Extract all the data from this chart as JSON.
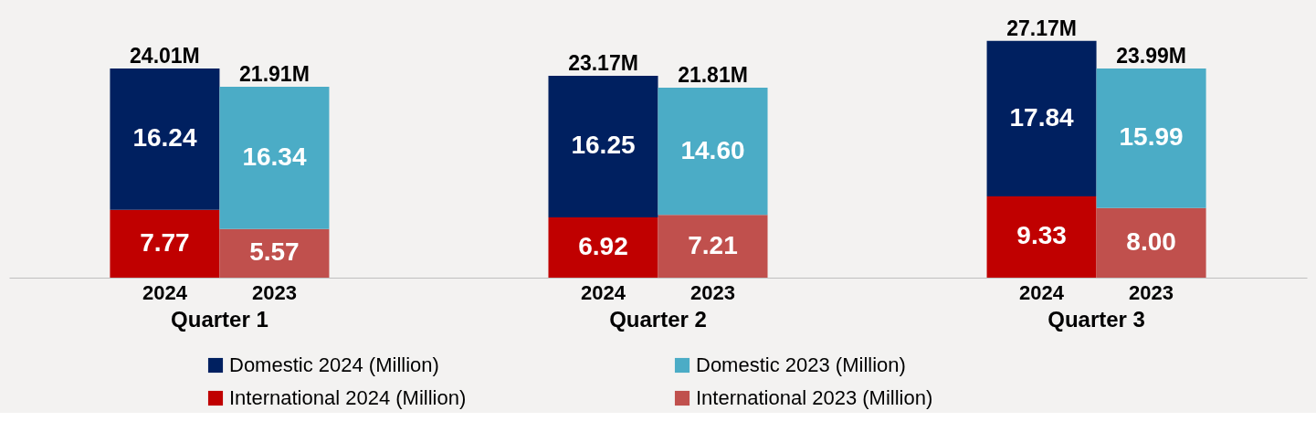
{
  "chart_data": {
    "type": "bar",
    "stacked": true,
    "legend": "bottom",
    "categories": [
      "2024",
      "2023",
      null,
      null,
      "2024",
      "2023",
      null,
      null,
      "2024",
      "2023"
    ],
    "series": [
      {
        "name": "International 2024 (Million)",
        "color": "#c00000",
        "values": [
          7.77,
          null,
          null,
          null,
          6.92,
          null,
          null,
          null,
          9.33,
          null
        ],
        "value_labels": [
          "7.77",
          null,
          null,
          null,
          "6.92",
          null,
          null,
          null,
          "9.33",
          null
        ]
      },
      {
        "name": "International 2023 (Million)",
        "color": "#c0504d",
        "values": [
          null,
          5.57,
          null,
          null,
          null,
          7.21,
          null,
          null,
          null,
          8.0
        ],
        "value_labels": [
          null,
          "5.57",
          null,
          null,
          null,
          "7.21",
          null,
          null,
          null,
          "8.00"
        ]
      },
      {
        "name": "Domestic 2024 (Million)",
        "color": "#002060",
        "values": [
          16.24,
          null,
          null,
          null,
          16.25,
          null,
          null,
          null,
          17.84,
          null
        ],
        "value_labels": [
          "16.24",
          null,
          null,
          null,
          "16.25",
          null,
          null,
          null,
          "17.84",
          null
        ]
      },
      {
        "name": "Domestic 2023 (Million)",
        "color": "#4bacc6",
        "values": [
          null,
          16.34,
          null,
          null,
          null,
          14.6,
          null,
          null,
          null,
          15.99
        ],
        "value_labels": [
          null,
          "16.34",
          null,
          null,
          null,
          "14.60",
          null,
          null,
          null,
          "15.99"
        ]
      }
    ],
    "totals": [
      "24.01M",
      "21.91M",
      null,
      null,
      "23.17M",
      "21.81M",
      null,
      null,
      "27.17M",
      "23.99M"
    ],
    "annotations": [
      "Quarter 1",
      "Quarter 2",
      "Quarter 3"
    ]
  }
}
